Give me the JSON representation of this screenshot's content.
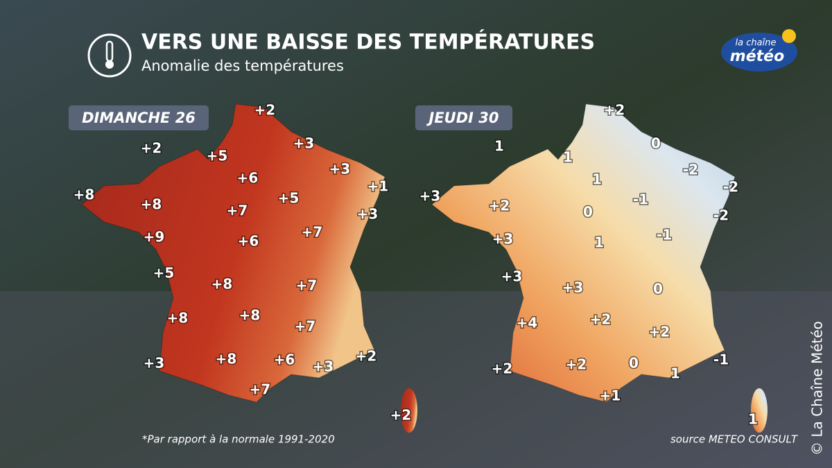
{
  "header": {
    "title": "VERS UNE BAISSE DES TEMPÉRATURES",
    "subtitle": "Anomalie des températures"
  },
  "logo": {
    "line1": "la chaîne",
    "line2": "météo"
  },
  "panels": [
    {
      "day": "DIMANCHE 26",
      "labels": [
        "+2",
        "+2",
        "+5",
        "+3",
        "+3",
        "+6",
        "+1",
        "+8",
        "+8",
        "+5",
        "+7",
        "+3",
        "+9",
        "+6",
        "+7",
        "+5",
        "+8",
        "+7",
        "+8",
        "+8",
        "+7",
        "+3",
        "+8",
        "+6",
        "+3",
        "+2",
        "+7",
        "+2"
      ]
    },
    {
      "day": "JEUDI 30",
      "labels": [
        "+2",
        "1",
        "0",
        "1",
        "-2",
        "1",
        "-2",
        "+3",
        "-1",
        "+2",
        "0",
        "-2",
        "-1",
        "+3",
        "1",
        "+3",
        "+3",
        "0",
        "+4",
        "+2",
        "+2",
        "+2",
        "+2",
        "0",
        "-1",
        "1",
        "+1",
        "1"
      ]
    }
  ],
  "footer": {
    "note": "*Par rapport à la normale 1991-2020",
    "source": "source METEO CONSULT"
  },
  "copyright": "© La Chaîne Météo"
}
